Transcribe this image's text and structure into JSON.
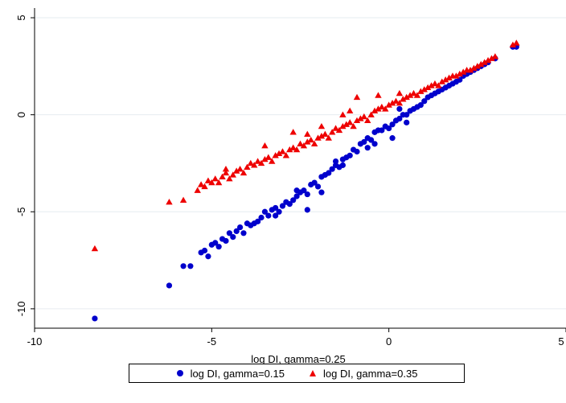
{
  "chart_data": {
    "type": "scatter",
    "title": "",
    "xlabel": "log DI, gamma=0.25",
    "ylabel": "",
    "xlim": [
      -10,
      5
    ],
    "ylim": [
      -11,
      5.5
    ],
    "xticks": [
      -10,
      -5,
      0,
      5
    ],
    "yticks": [
      -10,
      -5,
      0,
      5
    ],
    "xtick_labels": [
      "-10",
      "-5",
      "0",
      "5"
    ],
    "ytick_labels": [
      "-10",
      "-5",
      "0",
      "5"
    ],
    "grid": "horizontal",
    "legend_position": "bottom",
    "series": [
      {
        "name": "log DI, gamma=0.15",
        "marker": "circle",
        "color": "#0000cc",
        "points": [
          [
            -8.3,
            -10.5
          ],
          [
            -6.2,
            -8.8
          ],
          [
            -5.8,
            -7.8
          ],
          [
            -5.6,
            -7.8
          ],
          [
            -5.3,
            -7.1
          ],
          [
            -5.2,
            -7.0
          ],
          [
            -5.1,
            -7.3
          ],
          [
            -5.0,
            -6.7
          ],
          [
            -4.9,
            -6.6
          ],
          [
            -4.8,
            -6.8
          ],
          [
            -4.7,
            -6.4
          ],
          [
            -4.6,
            -6.5
          ],
          [
            -4.5,
            -6.1
          ],
          [
            -4.4,
            -6.3
          ],
          [
            -4.3,
            -6.0
          ],
          [
            -4.2,
            -5.8
          ],
          [
            -4.1,
            -6.1
          ],
          [
            -4.0,
            -5.6
          ],
          [
            -3.9,
            -5.7
          ],
          [
            -3.8,
            -5.6
          ],
          [
            -3.7,
            -5.5
          ],
          [
            -3.6,
            -5.3
          ],
          [
            -3.5,
            -5.0
          ],
          [
            -3.4,
            -5.2
          ],
          [
            -3.3,
            -4.9
          ],
          [
            -3.2,
            -4.8
          ],
          [
            -3.1,
            -5.0
          ],
          [
            -3.0,
            -4.7
          ],
          [
            -2.9,
            -4.5
          ],
          [
            -2.8,
            -4.6
          ],
          [
            -2.7,
            -4.4
          ],
          [
            -2.6,
            -4.2
          ],
          [
            -2.5,
            -4.0
          ],
          [
            -2.4,
            -3.9
          ],
          [
            -2.3,
            -4.1
          ],
          [
            -2.2,
            -3.6
          ],
          [
            -2.1,
            -3.5
          ],
          [
            -2.0,
            -3.7
          ],
          [
            -1.9,
            -3.2
          ],
          [
            -1.8,
            -3.1
          ],
          [
            -1.7,
            -3.0
          ],
          [
            -1.6,
            -2.8
          ],
          [
            -1.5,
            -2.6
          ],
          [
            -1.4,
            -2.7
          ],
          [
            -1.3,
            -2.3
          ],
          [
            -1.2,
            -2.2
          ],
          [
            -1.1,
            -2.1
          ],
          [
            -1.0,
            -1.8
          ],
          [
            -0.9,
            -1.9
          ],
          [
            -0.8,
            -1.5
          ],
          [
            -0.7,
            -1.4
          ],
          [
            -0.6,
            -1.2
          ],
          [
            -0.5,
            -1.3
          ],
          [
            -0.4,
            -0.9
          ],
          [
            -0.3,
            -0.8
          ],
          [
            -0.2,
            -0.8
          ],
          [
            -0.1,
            -0.6
          ],
          [
            0.0,
            -0.7
          ],
          [
            0.1,
            -0.5
          ],
          [
            0.2,
            -0.3
          ],
          [
            0.3,
            -0.2
          ],
          [
            0.4,
            0.0
          ],
          [
            0.5,
            0.0
          ],
          [
            0.6,
            0.2
          ],
          [
            0.7,
            0.3
          ],
          [
            0.8,
            0.4
          ],
          [
            0.9,
            0.5
          ],
          [
            1.0,
            0.7
          ],
          [
            1.1,
            0.9
          ],
          [
            1.2,
            1.0
          ],
          [
            1.3,
            1.1
          ],
          [
            1.4,
            1.2
          ],
          [
            1.5,
            1.3
          ],
          [
            1.6,
            1.4
          ],
          [
            1.7,
            1.5
          ],
          [
            1.8,
            1.6
          ],
          [
            1.9,
            1.7
          ],
          [
            2.0,
            1.8
          ],
          [
            2.1,
            2.0
          ],
          [
            2.2,
            2.1
          ],
          [
            2.3,
            2.2
          ],
          [
            2.4,
            2.3
          ],
          [
            2.5,
            2.4
          ],
          [
            2.6,
            2.5
          ],
          [
            2.7,
            2.6
          ],
          [
            2.8,
            2.7
          ],
          [
            3.0,
            2.9
          ],
          [
            3.5,
            3.5
          ],
          [
            3.6,
            3.5
          ],
          [
            -2.3,
            -4.9
          ],
          [
            -1.9,
            -4.0
          ],
          [
            -1.3,
            -2.6
          ],
          [
            -0.4,
            -1.5
          ],
          [
            0.1,
            -1.2
          ],
          [
            0.5,
            -0.4
          ],
          [
            -3.2,
            -5.2
          ],
          [
            -2.6,
            -3.9
          ],
          [
            -1.5,
            -2.4
          ],
          [
            -0.6,
            -1.7
          ],
          [
            0.3,
            0.3
          ]
        ]
      },
      {
        "name": "log DI, gamma=0.35",
        "marker": "triangle",
        "color": "#ee0000",
        "points": [
          [
            -8.3,
            -6.9
          ],
          [
            -6.2,
            -4.5
          ],
          [
            -5.8,
            -4.4
          ],
          [
            -5.4,
            -3.9
          ],
          [
            -5.3,
            -3.6
          ],
          [
            -5.2,
            -3.7
          ],
          [
            -5.1,
            -3.4
          ],
          [
            -5.0,
            -3.5
          ],
          [
            -4.9,
            -3.3
          ],
          [
            -4.8,
            -3.5
          ],
          [
            -4.7,
            -3.2
          ],
          [
            -4.6,
            -3.0
          ],
          [
            -4.5,
            -3.3
          ],
          [
            -4.4,
            -3.1
          ],
          [
            -4.3,
            -2.9
          ],
          [
            -4.2,
            -2.8
          ],
          [
            -4.1,
            -3.0
          ],
          [
            -4.0,
            -2.7
          ],
          [
            -3.9,
            -2.5
          ],
          [
            -3.8,
            -2.6
          ],
          [
            -3.7,
            -2.4
          ],
          [
            -3.6,
            -2.5
          ],
          [
            -3.5,
            -2.3
          ],
          [
            -3.4,
            -2.2
          ],
          [
            -3.3,
            -2.4
          ],
          [
            -3.2,
            -2.1
          ],
          [
            -3.1,
            -2.0
          ],
          [
            -3.0,
            -1.9
          ],
          [
            -2.9,
            -2.1
          ],
          [
            -2.8,
            -1.8
          ],
          [
            -2.7,
            -1.7
          ],
          [
            -2.6,
            -1.8
          ],
          [
            -2.5,
            -1.5
          ],
          [
            -2.4,
            -1.6
          ],
          [
            -2.3,
            -1.4
          ],
          [
            -2.2,
            -1.3
          ],
          [
            -2.1,
            -1.5
          ],
          [
            -2.0,
            -1.2
          ],
          [
            -1.9,
            -1.1
          ],
          [
            -1.8,
            -1.0
          ],
          [
            -1.7,
            -1.2
          ],
          [
            -1.6,
            -0.9
          ],
          [
            -1.5,
            -0.7
          ],
          [
            -1.4,
            -0.8
          ],
          [
            -1.3,
            -0.6
          ],
          [
            -1.2,
            -0.5
          ],
          [
            -1.1,
            -0.4
          ],
          [
            -1.0,
            -0.6
          ],
          [
            -0.9,
            -0.3
          ],
          [
            -0.8,
            -0.2
          ],
          [
            -0.7,
            -0.1
          ],
          [
            -0.6,
            -0.3
          ],
          [
            -0.5,
            0.0
          ],
          [
            -0.4,
            0.2
          ],
          [
            -0.3,
            0.3
          ],
          [
            -0.2,
            0.4
          ],
          [
            -0.1,
            0.3
          ],
          [
            0.0,
            0.5
          ],
          [
            0.1,
            0.6
          ],
          [
            0.2,
            0.7
          ],
          [
            0.3,
            0.6
          ],
          [
            0.4,
            0.8
          ],
          [
            0.5,
            0.9
          ],
          [
            0.6,
            1.0
          ],
          [
            0.7,
            1.1
          ],
          [
            0.8,
            1.0
          ],
          [
            0.9,
            1.2
          ],
          [
            1.0,
            1.3
          ],
          [
            1.1,
            1.4
          ],
          [
            1.2,
            1.5
          ],
          [
            1.3,
            1.6
          ],
          [
            1.4,
            1.5
          ],
          [
            1.5,
            1.7
          ],
          [
            1.6,
            1.8
          ],
          [
            1.7,
            1.9
          ],
          [
            1.8,
            2.0
          ],
          [
            1.9,
            2.0
          ],
          [
            2.0,
            2.1
          ],
          [
            2.1,
            2.2
          ],
          [
            2.2,
            2.3
          ],
          [
            2.3,
            2.3
          ],
          [
            2.4,
            2.4
          ],
          [
            2.5,
            2.5
          ],
          [
            2.6,
            2.6
          ],
          [
            2.7,
            2.7
          ],
          [
            2.8,
            2.8
          ],
          [
            2.9,
            2.9
          ],
          [
            3.0,
            3.0
          ],
          [
            3.5,
            3.6
          ],
          [
            3.6,
            3.7
          ],
          [
            -2.7,
            -0.9
          ],
          [
            -1.9,
            -0.6
          ],
          [
            -1.3,
            0.0
          ],
          [
            -1.1,
            0.2
          ],
          [
            -0.3,
            1.0
          ],
          [
            -0.9,
            0.9
          ],
          [
            0.3,
            1.1
          ],
          [
            -2.3,
            -1.0
          ],
          [
            -3.5,
            -1.6
          ],
          [
            -4.6,
            -2.8
          ]
        ]
      }
    ]
  }
}
